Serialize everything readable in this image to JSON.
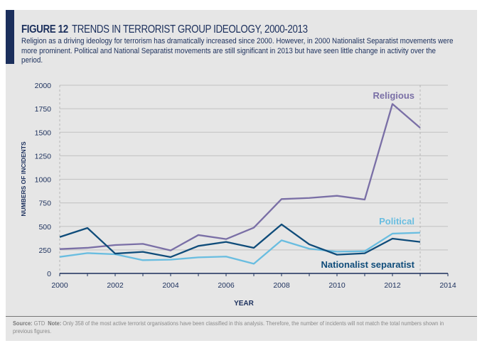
{
  "header": {
    "figure_label": "FIGURE 12",
    "title": "TRENDS IN TERRORIST GROUP IDEOLOGY, 2000-2013",
    "subtitle": "Religion as a driving ideology for terrorism has dramatically increased since 2000. However, in 2000 Nationalist Separatist movements were more prominent. Political and National Separatist movements are still significant in 2013 but have seen little change in activity over the period."
  },
  "footer": {
    "source_label": "Source:",
    "source": "GTD",
    "note_label": "Note:",
    "note": "Only 358 of the most active terrorist organisations have been classified in this analysis. Therefore, the number of incidents will not match the total numbers shown in previous figures."
  },
  "chart_data": {
    "type": "line",
    "title": "TRENDS IN TERRORIST GROUP IDEOLOGY, 2000-2013",
    "xlabel": "YEAR",
    "ylabel": "NUMBERS OF INCIDENTS",
    "xlim": [
      2000,
      2014
    ],
    "ylim": [
      0,
      2000
    ],
    "xticks": [
      2000,
      2002,
      2004,
      2006,
      2008,
      2010,
      2012,
      2014
    ],
    "yticks": [
      0,
      250,
      500,
      750,
      1000,
      1250,
      1500,
      1750,
      2000
    ],
    "grid": true,
    "x": [
      2000,
      2001,
      2002,
      2003,
      2004,
      2005,
      2006,
      2007,
      2008,
      2009,
      2010,
      2011,
      2012,
      2013
    ],
    "series": [
      {
        "name": "Religious",
        "color": "#7a6fa6",
        "values": [
          259,
          272,
          302,
          314,
          244,
          408,
          365,
          486,
          790,
          802,
          825,
          785,
          1801,
          1547
        ]
      },
      {
        "name": "Political",
        "color": "#69bde0",
        "values": [
          176,
          216,
          204,
          141,
          146,
          171,
          179,
          103,
          352,
          262,
          231,
          236,
          423,
          433
        ]
      },
      {
        "name": "Nationalist separatist",
        "color": "#0f4c7a",
        "values": [
          387,
          483,
          211,
          229,
          174,
          292,
          335,
          272,
          521,
          309,
          199,
          214,
          370,
          335
        ]
      }
    ]
  }
}
